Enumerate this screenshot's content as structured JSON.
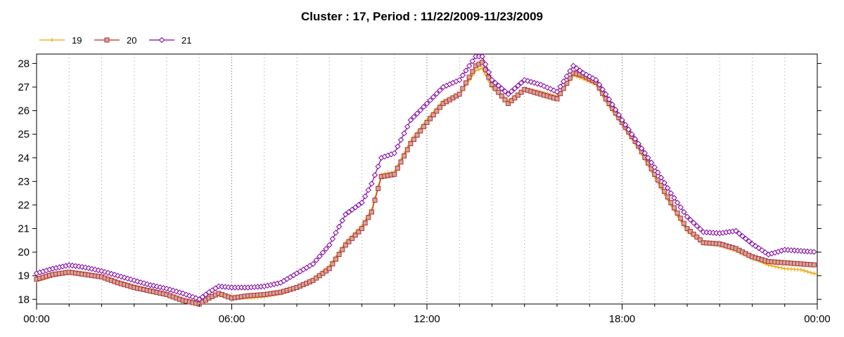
{
  "chart_data": {
    "type": "line",
    "title": "Cluster : 17, Period : 11/22/2009-11/23/2009",
    "xlabel": "",
    "ylabel": "",
    "x_ticks": [
      "00:00",
      "06:00",
      "12:00",
      "18:00",
      "00:00"
    ],
    "y_ticks": [
      18,
      19,
      20,
      21,
      22,
      23,
      24,
      25,
      26,
      27,
      28
    ],
    "ylim": [
      17.8,
      28.4
    ],
    "xlim_hours": [
      0,
      24
    ],
    "grid": "dotted vertical lines at each hour, major at 6-hour marks",
    "legend_position": "top-left",
    "series": [
      {
        "name": "19",
        "color": "#f0a000",
        "marker": "plus",
        "points": [
          [
            0.0,
            18.8
          ],
          [
            0.5,
            19.0
          ],
          [
            1.0,
            19.15
          ],
          [
            1.5,
            19.1
          ],
          [
            2.0,
            18.95
          ],
          [
            2.5,
            18.75
          ],
          [
            3.0,
            18.55
          ],
          [
            3.5,
            18.35
          ],
          [
            4.0,
            18.2
          ],
          [
            4.5,
            18.0
          ],
          [
            5.0,
            17.8
          ],
          [
            5.3,
            18.05
          ],
          [
            5.6,
            18.2
          ],
          [
            6.0,
            18.1
          ],
          [
            6.5,
            18.05
          ],
          [
            7.0,
            18.1
          ],
          [
            7.5,
            18.25
          ],
          [
            8.0,
            18.5
          ],
          [
            8.5,
            18.85
          ],
          [
            9.0,
            19.4
          ],
          [
            9.5,
            20.4
          ],
          [
            10.0,
            21.1
          ],
          [
            10.3,
            21.8
          ],
          [
            10.6,
            23.3
          ],
          [
            11.0,
            23.4
          ],
          [
            11.5,
            24.7
          ],
          [
            12.0,
            25.6
          ],
          [
            12.5,
            26.4
          ],
          [
            13.0,
            26.7
          ],
          [
            13.5,
            27.7
          ],
          [
            13.7,
            27.8
          ],
          [
            14.0,
            27.0
          ],
          [
            14.5,
            26.4
          ],
          [
            15.0,
            26.9
          ],
          [
            15.5,
            26.8
          ],
          [
            16.0,
            26.6
          ],
          [
            16.5,
            27.5
          ],
          [
            16.8,
            27.35
          ],
          [
            17.2,
            27.1
          ],
          [
            17.5,
            26.4
          ],
          [
            18.0,
            25.4
          ],
          [
            18.5,
            24.4
          ],
          [
            19.0,
            23.2
          ],
          [
            19.5,
            22.0
          ],
          [
            20.0,
            20.9
          ],
          [
            20.5,
            20.4
          ],
          [
            21.0,
            20.3
          ],
          [
            21.5,
            20.05
          ],
          [
            22.0,
            19.75
          ],
          [
            22.5,
            19.45
          ],
          [
            23.0,
            19.3
          ],
          [
            23.5,
            19.25
          ],
          [
            24.0,
            19.05
          ]
        ]
      },
      {
        "name": "20",
        "color": "#b03030",
        "marker": "square",
        "points": [
          [
            0.0,
            18.85
          ],
          [
            0.5,
            19.05
          ],
          [
            1.0,
            19.15
          ],
          [
            1.5,
            19.05
          ],
          [
            2.0,
            18.95
          ],
          [
            2.5,
            18.7
          ],
          [
            3.0,
            18.5
          ],
          [
            3.5,
            18.35
          ],
          [
            4.0,
            18.2
          ],
          [
            4.5,
            17.95
          ],
          [
            5.0,
            17.8
          ],
          [
            5.3,
            18.05
          ],
          [
            5.6,
            18.25
          ],
          [
            6.0,
            18.05
          ],
          [
            6.5,
            18.15
          ],
          [
            7.0,
            18.2
          ],
          [
            7.5,
            18.3
          ],
          [
            8.0,
            18.5
          ],
          [
            8.5,
            18.8
          ],
          [
            9.0,
            19.3
          ],
          [
            9.5,
            20.3
          ],
          [
            10.0,
            21.0
          ],
          [
            10.3,
            21.7
          ],
          [
            10.6,
            23.2
          ],
          [
            11.0,
            23.3
          ],
          [
            11.5,
            24.6
          ],
          [
            12.0,
            25.5
          ],
          [
            12.5,
            26.3
          ],
          [
            13.0,
            26.7
          ],
          [
            13.5,
            27.9
          ],
          [
            13.7,
            28.05
          ],
          [
            14.0,
            27.1
          ],
          [
            14.5,
            26.3
          ],
          [
            15.0,
            26.9
          ],
          [
            15.5,
            26.7
          ],
          [
            16.0,
            26.5
          ],
          [
            16.5,
            27.6
          ],
          [
            16.8,
            27.5
          ],
          [
            17.2,
            27.2
          ],
          [
            17.5,
            26.5
          ],
          [
            18.0,
            25.5
          ],
          [
            18.5,
            24.5
          ],
          [
            19.0,
            23.3
          ],
          [
            19.5,
            22.1
          ],
          [
            20.0,
            21.0
          ],
          [
            20.5,
            20.4
          ],
          [
            21.0,
            20.35
          ],
          [
            21.5,
            20.15
          ],
          [
            22.0,
            19.8
          ],
          [
            22.5,
            19.6
          ],
          [
            23.0,
            19.55
          ],
          [
            23.5,
            19.5
          ],
          [
            24.0,
            19.45
          ]
        ]
      },
      {
        "name": "21",
        "color": "#8000a0",
        "marker": "diamond",
        "points": [
          [
            0.0,
            19.1
          ],
          [
            0.5,
            19.3
          ],
          [
            1.0,
            19.45
          ],
          [
            1.5,
            19.35
          ],
          [
            2.0,
            19.2
          ],
          [
            2.5,
            19.0
          ],
          [
            3.0,
            18.8
          ],
          [
            3.5,
            18.6
          ],
          [
            4.0,
            18.45
          ],
          [
            4.5,
            18.25
          ],
          [
            5.0,
            18.0
          ],
          [
            5.3,
            18.3
          ],
          [
            5.6,
            18.55
          ],
          [
            6.0,
            18.5
          ],
          [
            6.5,
            18.5
          ],
          [
            7.0,
            18.55
          ],
          [
            7.5,
            18.7
          ],
          [
            8.0,
            19.1
          ],
          [
            8.5,
            19.5
          ],
          [
            9.0,
            20.3
          ],
          [
            9.5,
            21.6
          ],
          [
            10.0,
            22.1
          ],
          [
            10.3,
            22.9
          ],
          [
            10.6,
            24.0
          ],
          [
            11.0,
            24.2
          ],
          [
            11.5,
            25.6
          ],
          [
            12.0,
            26.3
          ],
          [
            12.5,
            27.0
          ],
          [
            13.0,
            27.3
          ],
          [
            13.5,
            28.3
          ],
          [
            13.7,
            28.3
          ],
          [
            14.0,
            27.3
          ],
          [
            14.5,
            26.7
          ],
          [
            15.0,
            27.3
          ],
          [
            15.5,
            27.1
          ],
          [
            16.0,
            26.8
          ],
          [
            16.5,
            27.9
          ],
          [
            16.8,
            27.6
          ],
          [
            17.2,
            27.3
          ],
          [
            17.5,
            26.7
          ],
          [
            18.0,
            25.6
          ],
          [
            18.5,
            24.6
          ],
          [
            19.0,
            23.6
          ],
          [
            19.5,
            22.5
          ],
          [
            20.0,
            21.5
          ],
          [
            20.5,
            20.85
          ],
          [
            21.0,
            20.8
          ],
          [
            21.5,
            20.9
          ],
          [
            22.0,
            20.35
          ],
          [
            22.5,
            19.9
          ],
          [
            23.0,
            20.1
          ],
          [
            23.5,
            20.05
          ],
          [
            24.0,
            20.0
          ]
        ]
      }
    ]
  }
}
